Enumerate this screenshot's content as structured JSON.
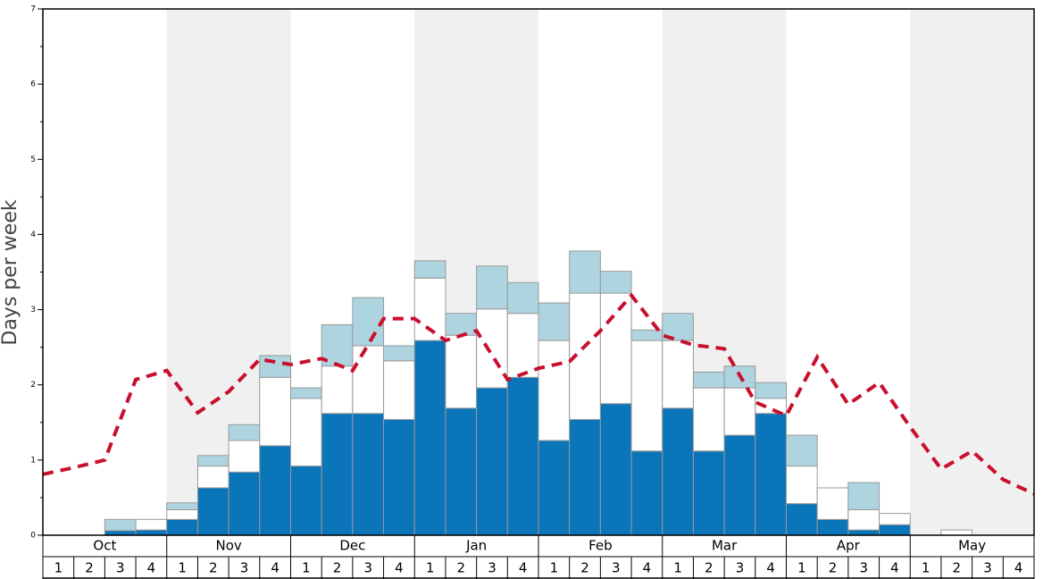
{
  "chart_data": {
    "type": "bar",
    "ylabel": "Days per week",
    "months": [
      "Oct",
      "Nov",
      "Dec",
      "Jan",
      "Feb",
      "Mar",
      "Apr",
      "May"
    ],
    "weeks": [
      "1",
      "2",
      "3",
      "4"
    ],
    "ylim": [
      0,
      7
    ],
    "yticks": [
      0,
      1,
      2,
      3,
      4,
      5,
      6,
      7
    ],
    "yminorticks": [
      0.5,
      1.5,
      2.5,
      3.5,
      4.5,
      5.5,
      6.5
    ],
    "series": [
      {
        "color": "#0a75b8",
        "values": [
          0,
          0,
          0.06,
          0.07,
          0.21,
          0.63,
          0.84,
          1.19,
          0.92,
          1.62,
          1.62,
          1.54,
          2.59,
          1.69,
          1.96,
          2.1,
          1.26,
          1.54,
          1.75,
          1.12,
          1.69,
          1.12,
          1.33,
          1.62,
          0.42,
          0.21,
          0.07,
          0.14,
          0,
          0,
          0,
          0
        ]
      },
      {
        "color": "#ffffff",
        "values": [
          0,
          0,
          0,
          0.14,
          0.13,
          0.29,
          0.42,
          0.91,
          0.9,
          0.63,
          0.9,
          0.78,
          0.83,
          0.97,
          1.05,
          0.85,
          1.33,
          1.68,
          1.47,
          1.47,
          0.9,
          0.84,
          0.63,
          0.2,
          0.5,
          0.42,
          0.27,
          0.15,
          0,
          0.07,
          0,
          0
        ]
      },
      {
        "color": "#aed4e0",
        "values": [
          0,
          0,
          0.15,
          0,
          0.09,
          0.14,
          0.21,
          0.29,
          0.14,
          0.55,
          0.64,
          0.2,
          0.23,
          0.29,
          0.57,
          0.41,
          0.5,
          0.56,
          0.29,
          0.14,
          0.36,
          0.21,
          0.29,
          0.21,
          0.41,
          0,
          0.36,
          0,
          0,
          0,
          0,
          0
        ]
      }
    ],
    "line": {
      "color": "#c8102e",
      "x": [
        0,
        1,
        2,
        3,
        4,
        5,
        6,
        7,
        8,
        9,
        10,
        11,
        12,
        13,
        14,
        15,
        16,
        17,
        18,
        19,
        20,
        21,
        22,
        23,
        24,
        25,
        26,
        27,
        28,
        29,
        30,
        31,
        32
      ],
      "values": [
        0.81,
        0.9,
        1.0,
        2.07,
        2.19,
        1.63,
        1.91,
        2.34,
        2.27,
        2.35,
        2.19,
        2.88,
        2.88,
        2.59,
        2.72,
        2.07,
        2.22,
        2.31,
        2.72,
        3.19,
        2.66,
        2.53,
        2.48,
        1.77,
        1.59,
        2.37,
        1.74,
        2.03,
        1.44,
        0.88,
        1.12,
        0.74,
        0.55
      ]
    },
    "xlim": [
      0,
      32
    ]
  }
}
